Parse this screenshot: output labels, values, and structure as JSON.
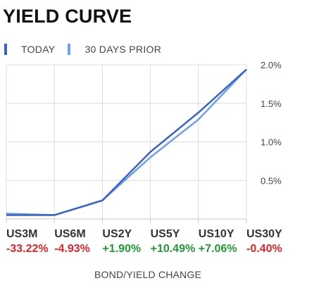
{
  "title": "YIELD CURVE",
  "legend": [
    {
      "label": "TODAY",
      "color": "#3b63c7"
    },
    {
      "label": "30 DAYS PRIOR",
      "color": "#6f9ef5"
    }
  ],
  "chart_data": {
    "type": "line",
    "categories": [
      "US3M",
      "US6M",
      "US2Y",
      "US5Y",
      "US10Y",
      "US30Y"
    ],
    "series": [
      {
        "values": [
          0.05,
          0.05,
          0.24,
          0.87,
          1.38,
          1.94
        ],
        "color": "#3b63c7"
      },
      {
        "values": [
          0.07,
          0.05,
          0.24,
          0.8,
          1.29,
          1.94
        ],
        "color": "#6f9ef5"
      }
    ],
    "ylim": [
      0,
      2.0
    ],
    "yticks": [
      {
        "value": 0.5,
        "label": "0.5%"
      },
      {
        "value": 1.0,
        "label": "1.0%"
      },
      {
        "value": 1.5,
        "label": "1.5%"
      },
      {
        "value": 2.0,
        "label": "2.0%"
      }
    ],
    "y_axis_position": "right",
    "grid": true,
    "changes": [
      {
        "category": "US3M",
        "label": "-33.22%",
        "color": "#e0242a"
      },
      {
        "category": "US6M",
        "label": "-4.93%",
        "color": "#e0242a"
      },
      {
        "category": "US2Y",
        "label": "+1.90%",
        "color": "#1e9b34"
      },
      {
        "category": "US5Y",
        "label": "+10.49%",
        "color": "#1e9b34"
      },
      {
        "category": "US10Y",
        "label": "+7.06%",
        "color": "#1e9b34"
      },
      {
        "category": "US30Y",
        "label": "-0.40%",
        "color": "#e0242a"
      }
    ],
    "footer_label": "BOND/YIELD CHANGE"
  }
}
